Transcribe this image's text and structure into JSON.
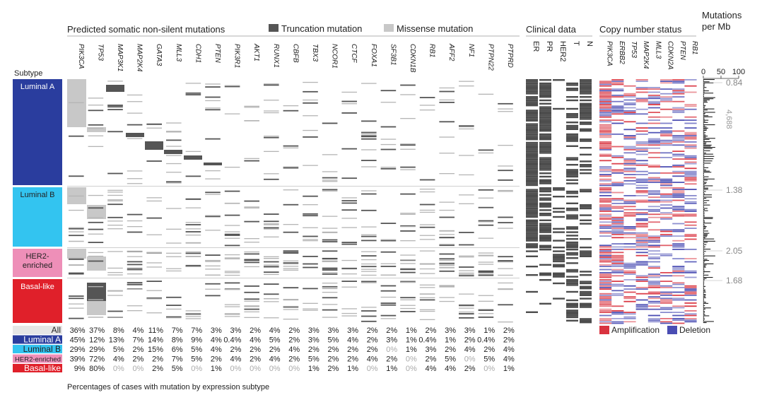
{
  "headers": {
    "mutations": "Predicted somatic non-silent mutations",
    "truncation": "Truncation mutation",
    "missense": "Missense mutation",
    "clinical": "Clinical data",
    "copy_number": "Copy number status",
    "mut_per_mb_1": "Mutations",
    "mut_per_mb_2": "per Mb",
    "subtype": "Subtype",
    "footer": "Percentages of cases with mutation by expression subtype",
    "amplification": "Amplification",
    "deletion": "Deletion"
  },
  "colors": {
    "truncation": "#555555",
    "missense": "#c8c8c8",
    "amplification": "#d9333f",
    "deletion": "#4a4db3",
    "luminal_a": "#2a3d9e",
    "luminal_b": "#33c4f0",
    "her2": "#ee8fb8",
    "basal": "#e0202a",
    "all": "#e6e6e6"
  },
  "chart_data": {
    "type": "heatmap",
    "genes": [
      "PIK3CA",
      "TP53",
      "MAP3K1",
      "MAP2K4",
      "GATA3",
      "MLL3",
      "CDH1",
      "PTEN",
      "PIK3R1",
      "AKT1",
      "RUNX1",
      "CBFB",
      "TBX3",
      "NCOR1",
      "CTCF",
      "FOXA1",
      "SF3B1",
      "CDKN1B",
      "RB1",
      "AFF2",
      "NF1",
      "PTPN22",
      "PTPRD"
    ],
    "clinical_columns": [
      "ER",
      "PR",
      "HER2",
      "T",
      "N"
    ],
    "copy_number_genes": [
      "PIK3CA",
      "ERBB2",
      "TP53",
      "MAP2K4",
      "MLL3",
      "CDKN2A",
      "PTEN",
      "RB1"
    ],
    "mutation_rate_axis": {
      "ticks": [
        "0",
        "50",
        "100"
      ],
      "range": [
        0,
        100
      ]
    },
    "subtypes": [
      {
        "label": "Luminal A",
        "label_lines": [
          "Luminal A"
        ],
        "median": "0.84"
      },
      {
        "label": "Luminal B",
        "label_lines": [
          "Luminal B"
        ],
        "median": "1.38"
      },
      {
        "label": "HER2-enriched",
        "label_lines": [
          "HER2-",
          "enriched"
        ],
        "median": "2.05"
      },
      {
        "label": "Basal-like",
        "label_lines": [
          "Basal-like"
        ],
        "median": "1.68"
      }
    ],
    "outlier_label": "4,688",
    "percentages": [
      {
        "label": "All",
        "values": [
          "36%",
          "37%",
          "8%",
          "4%",
          "11%",
          "7%",
          "7%",
          "3%",
          "3%",
          "2%",
          "4%",
          "2%",
          "3%",
          "3%",
          "3%",
          "2%",
          "2%",
          "1%",
          "2%",
          "3%",
          "3%",
          "1%",
          "2%"
        ]
      },
      {
        "label": "Luminal A",
        "values": [
          "45%",
          "12%",
          "13%",
          "7%",
          "14%",
          "8%",
          "9%",
          "4%",
          "0.4%",
          "4%",
          "5%",
          "2%",
          "3%",
          "5%",
          "4%",
          "2%",
          "3%",
          "1%",
          "0.4%",
          "1%",
          "2%",
          "0.4%",
          "2%"
        ]
      },
      {
        "label": "Luminal B",
        "values": [
          "29%",
          "29%",
          "5%",
          "2%",
          "15%",
          "6%",
          "5%",
          "4%",
          "2%",
          "2%",
          "2%",
          "4%",
          "2%",
          "2%",
          "2%",
          "2%",
          "0%",
          "1%",
          "3%",
          "2%",
          "4%",
          "2%",
          "4%"
        ]
      },
      {
        "label": "HER2-enriched",
        "values": [
          "39%",
          "72%",
          "4%",
          "2%",
          "2%",
          "7%",
          "5%",
          "2%",
          "4%",
          "2%",
          "4%",
          "2%",
          "5%",
          "2%",
          "2%",
          "4%",
          "2%",
          "0%",
          "2%",
          "5%",
          "0%",
          "5%",
          "4%"
        ]
      },
      {
        "label": "Basal-like",
        "values": [
          "9%",
          "80%",
          "0%",
          "0%",
          "2%",
          "5%",
          "0%",
          "1%",
          "0%",
          "0%",
          "0%",
          "0%",
          "1%",
          "2%",
          "1%",
          "0%",
          "1%",
          "0%",
          "4%",
          "4%",
          "2%",
          "0%",
          "1%"
        ]
      }
    ]
  }
}
